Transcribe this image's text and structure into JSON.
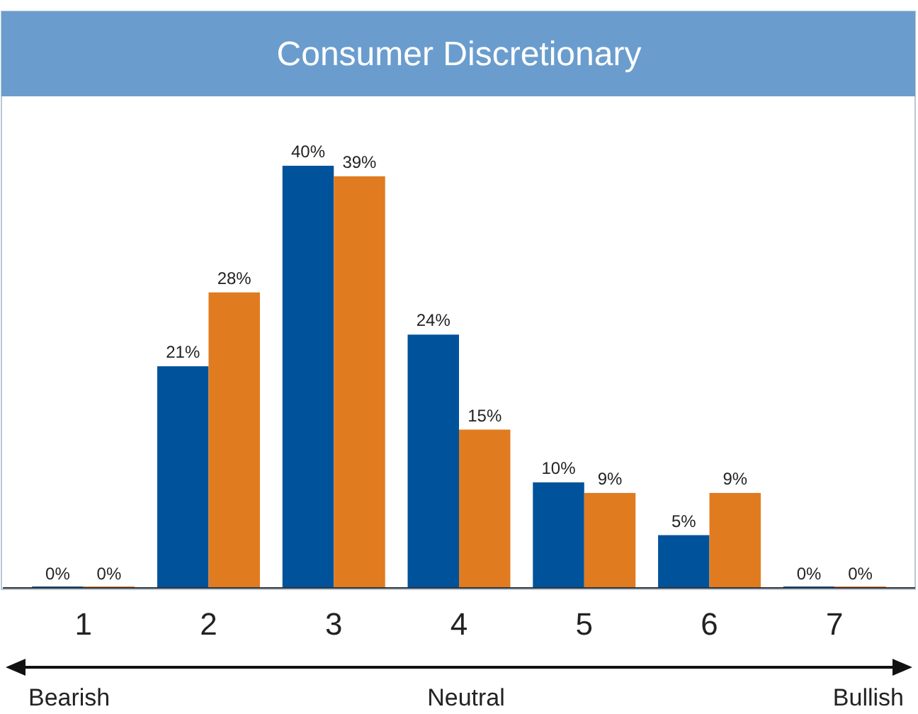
{
  "chart_data": {
    "type": "bar",
    "title": "Consumer Discretionary",
    "categories": [
      "1",
      "2",
      "3",
      "4",
      "5",
      "6",
      "7"
    ],
    "series": [
      {
        "color": "#00539b",
        "values": [
          0,
          21,
          40,
          24,
          10,
          5,
          0
        ],
        "value_labels": [
          "0%",
          "21%",
          "40%",
          "24%",
          "10%",
          "5%",
          "0%"
        ]
      },
      {
        "color": "#e07b20",
        "values": [
          0,
          28,
          39,
          15,
          9,
          9,
          0
        ],
        "value_labels": [
          "0%",
          "28%",
          "39%",
          "15%",
          "9%",
          "9%",
          "0%"
        ]
      }
    ],
    "annotations": [
      "Bearish",
      "Neutral",
      "Bullish"
    ]
  }
}
